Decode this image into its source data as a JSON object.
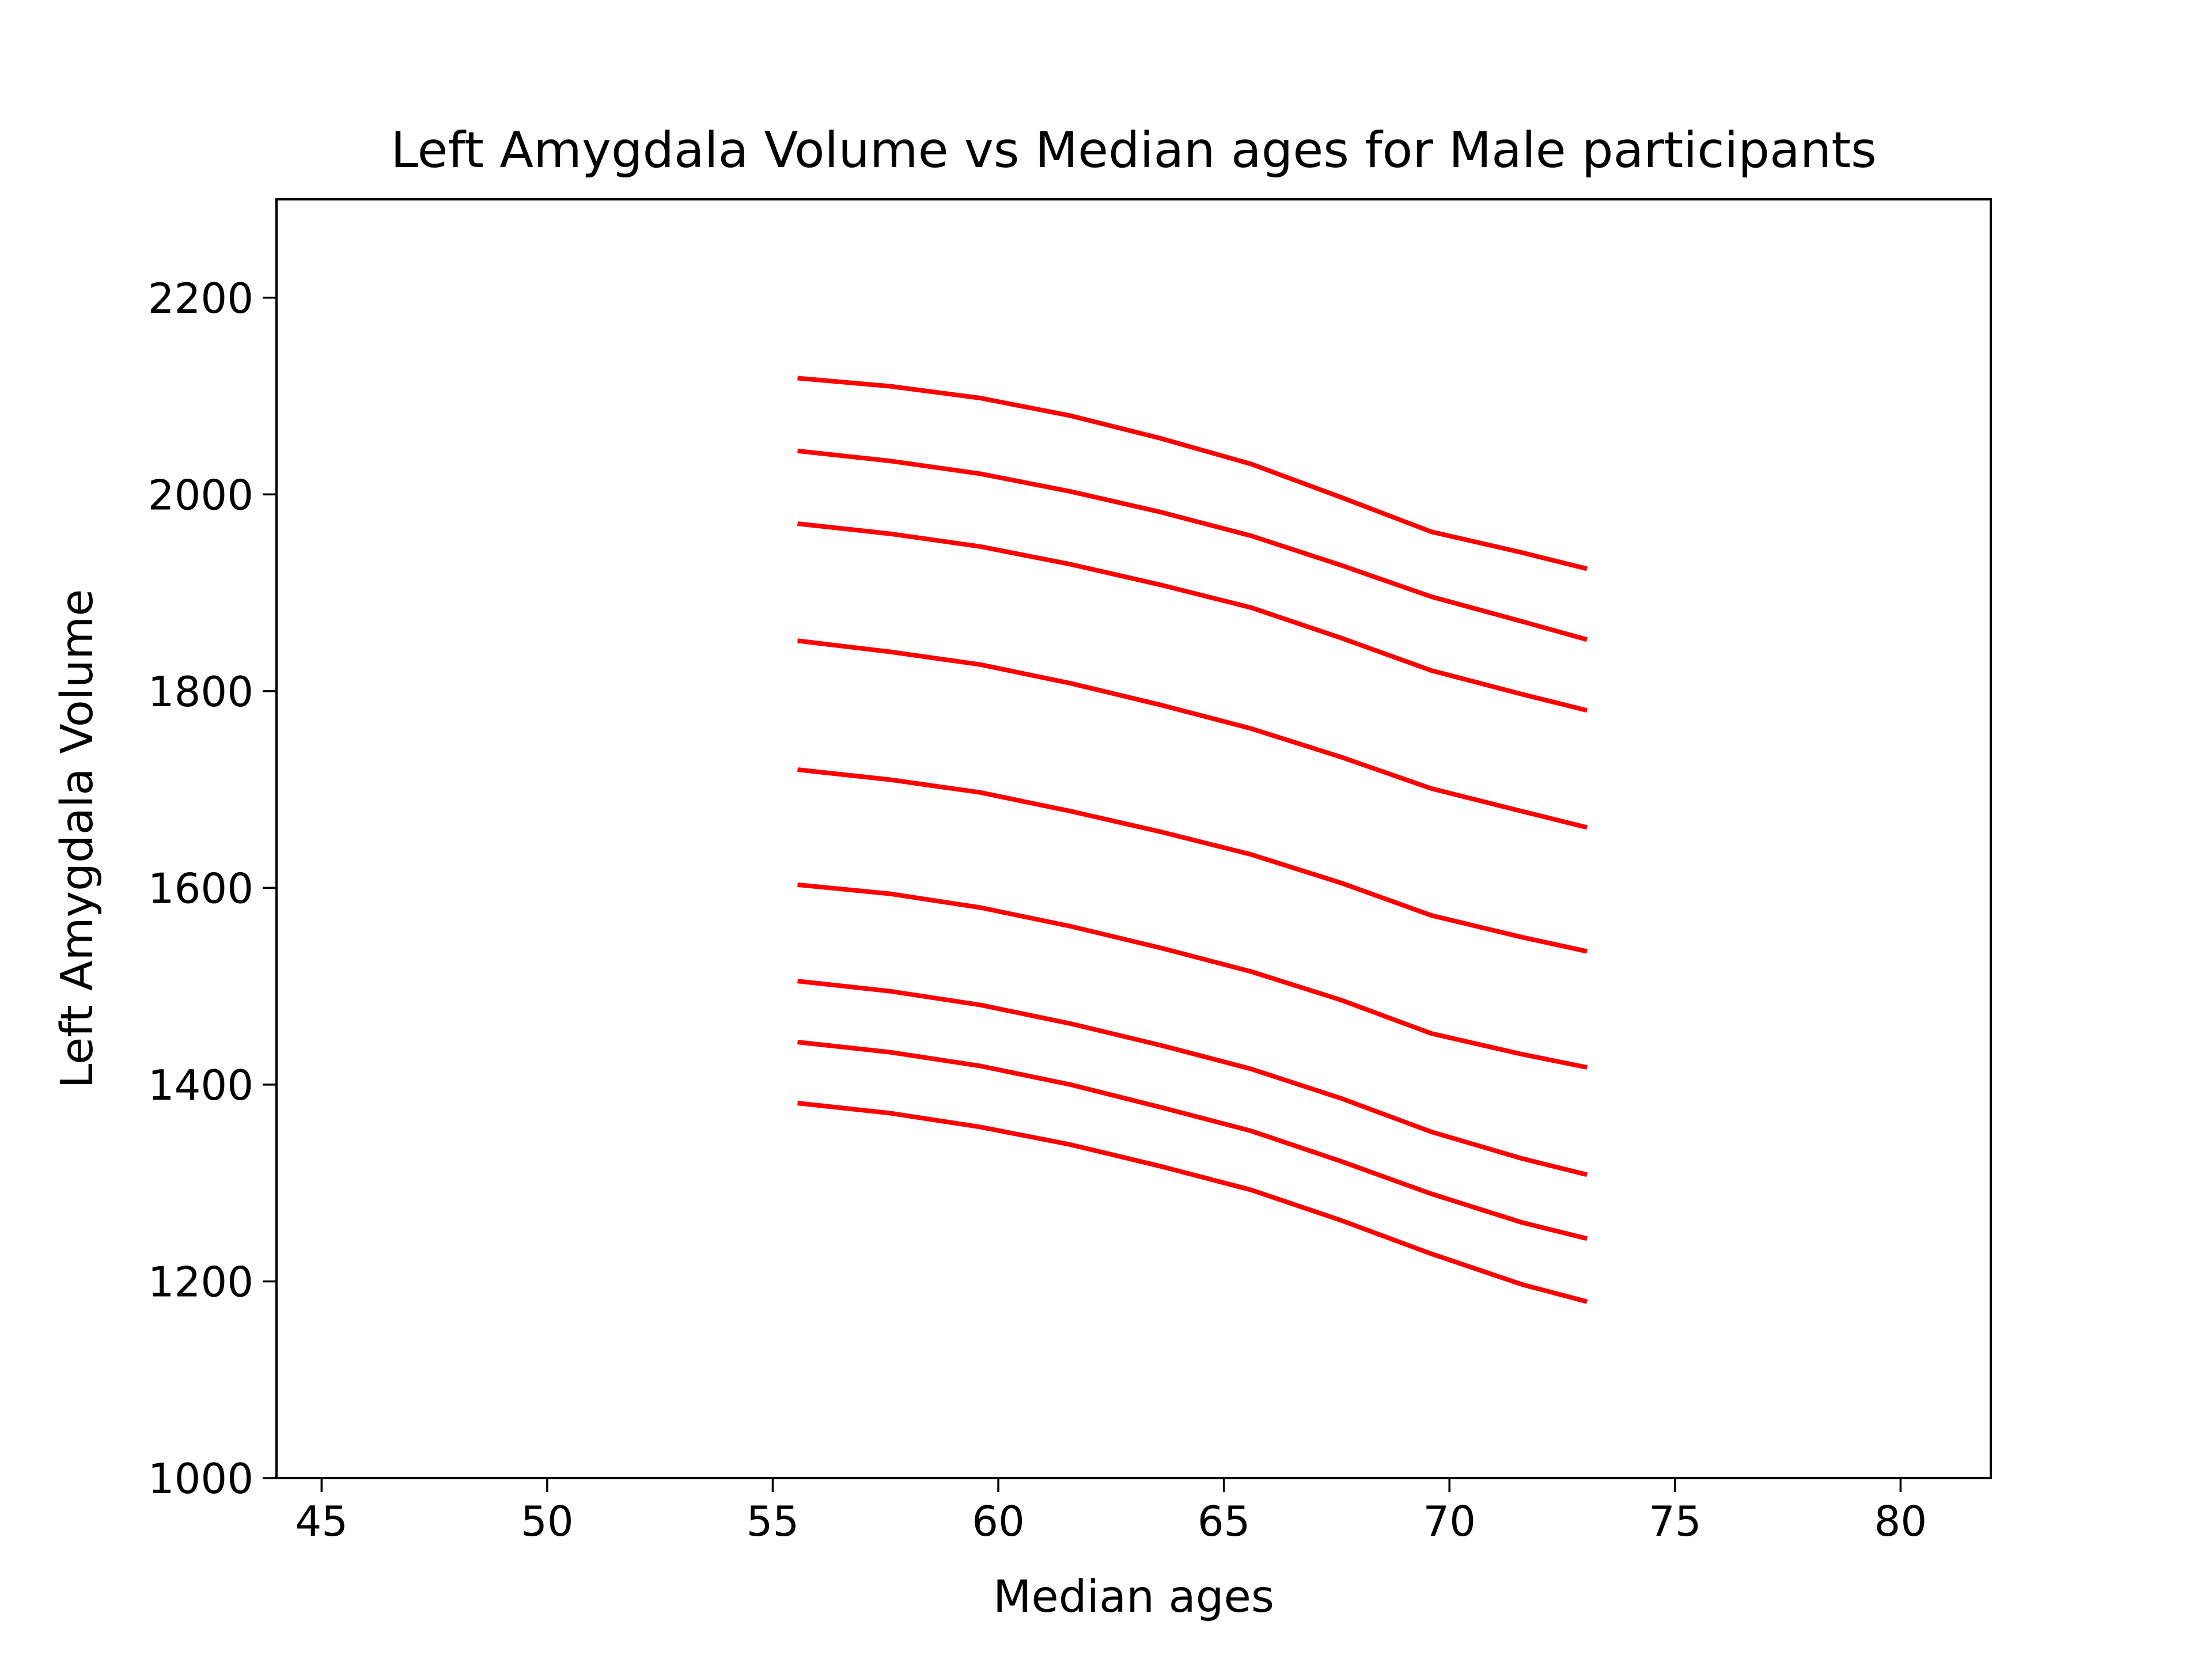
{
  "chart_data": {
    "type": "line",
    "title": "Left Amygdala Volume vs Median ages for Male participants",
    "xlabel": "Median ages",
    "ylabel": "Left Amygdala Volume",
    "xlim": [
      44,
      82
    ],
    "ylim": [
      1000,
      2300
    ],
    "xticks": [
      "45",
      "50",
      "55",
      "60",
      "65",
      "70",
      "75",
      "80"
    ],
    "yticks": [
      "1000",
      "1200",
      "1400",
      "1600",
      "1800",
      "2000",
      "2200"
    ],
    "grid": false,
    "line_color": "#ff0000",
    "x": [
      55.6,
      57.6,
      59.6,
      61.6,
      63.6,
      65.6,
      67.6,
      69.6,
      71.6,
      73.0
    ],
    "series": [
      {
        "values": [
          2118,
          2110,
          2098,
          2080,
          2057,
          2031,
          1997,
          1962,
          1941,
          1925
        ]
      },
      {
        "values": [
          2044,
          2034,
          2021,
          2003,
          1982,
          1958,
          1928,
          1896,
          1871,
          1853
        ]
      },
      {
        "values": [
          1970,
          1960,
          1947,
          1929,
          1908,
          1885,
          1854,
          1821,
          1797,
          1781
        ]
      },
      {
        "values": [
          1851,
          1840,
          1827,
          1808,
          1786,
          1762,
          1733,
          1701,
          1678,
          1662
        ]
      },
      {
        "values": [
          1720,
          1710,
          1697,
          1678,
          1657,
          1634,
          1605,
          1572,
          1550,
          1536
        ]
      },
      {
        "values": [
          1603,
          1594,
          1580,
          1561,
          1539,
          1515,
          1486,
          1452,
          1431,
          1418
        ]
      },
      {
        "values": [
          1505,
          1495,
          1481,
          1462,
          1440,
          1416,
          1386,
          1352,
          1325,
          1309
        ]
      },
      {
        "values": [
          1443,
          1433,
          1419,
          1400,
          1377,
          1353,
          1322,
          1289,
          1260,
          1244
        ]
      },
      {
        "values": [
          1381,
          1371,
          1357,
          1339,
          1317,
          1293,
          1262,
          1228,
          1197,
          1180
        ]
      }
    ]
  }
}
